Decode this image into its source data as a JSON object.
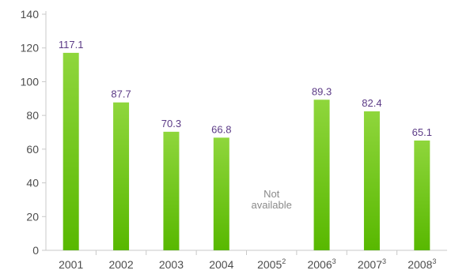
{
  "chart_data": {
    "type": "bar",
    "title": "",
    "xlabel": "",
    "ylabel": "",
    "categories": [
      "2001",
      "2002",
      "2003",
      "2004",
      "2005",
      "2006",
      "2007",
      "2008"
    ],
    "category_superscripts": [
      "",
      "",
      "",
      "",
      "2",
      "3",
      "3",
      "3"
    ],
    "values": [
      117.1,
      87.7,
      70.3,
      66.8,
      null,
      89.3,
      82.4,
      65.1
    ],
    "value_labels": [
      "117.1",
      "87.7",
      "70.3",
      "66.8",
      "",
      "89.3",
      "82.4",
      "65.1"
    ],
    "missing_note": {
      "category_index": 4,
      "lines": [
        "Not",
        "available"
      ]
    },
    "ylim": [
      0,
      140
    ],
    "yticks": [
      "0",
      "20",
      "40",
      "60",
      "80",
      "100",
      "120",
      "140"
    ],
    "grid": false,
    "legend": "none",
    "colors": {
      "bar_top": "#8fd63c",
      "bar_bottom": "#58b800",
      "data_label": "#5b3a86",
      "note": "#8a8a8a",
      "axis": "#c8c8c8"
    }
  }
}
